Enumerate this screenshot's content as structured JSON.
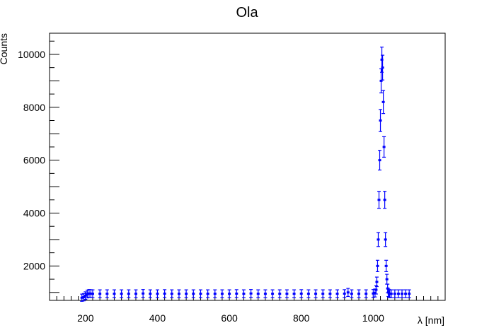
{
  "chart_data": {
    "type": "scatter",
    "title": "Ola",
    "xlabel": "λ [nm]",
    "ylabel": "Counts",
    "xlim": [
      100,
      1200
    ],
    "ylim": [
      700,
      10800
    ],
    "x_ticks": [
      200,
      400,
      600,
      800,
      1000
    ],
    "x_tick_labels": [
      "200",
      "400",
      "600",
      "800",
      "1000"
    ],
    "y_ticks": [
      2000,
      4000,
      6000,
      8000,
      10000
    ],
    "y_tick_labels": [
      "2000",
      "4000",
      "6000",
      "8000",
      "10000"
    ],
    "grid": false,
    "marker_color": "#0000ff",
    "series": [
      {
        "x": [
          190,
          195,
          200,
          205,
          210,
          215,
          220,
          240,
          260,
          280,
          300,
          320,
          340,
          360,
          380,
          400,
          420,
          440,
          460,
          480,
          500,
          520,
          540,
          560,
          580,
          600,
          620,
          640,
          660,
          680,
          700,
          720,
          740,
          760,
          780,
          800,
          820,
          840,
          860,
          880,
          900,
          920,
          930,
          940,
          960,
          980,
          1000,
          1005,
          1008,
          1010,
          1012,
          1014,
          1016,
          1018,
          1020,
          1022,
          1024,
          1026,
          1028,
          1030,
          1032,
          1034,
          1036,
          1038,
          1040,
          1042,
          1044,
          1046,
          1050,
          1060,
          1070,
          1080,
          1090,
          1100
        ],
        "y": [
          800,
          820,
          880,
          940,
          960,
          955,
          950,
          950,
          950,
          950,
          950,
          950,
          950,
          960,
          950,
          950,
          955,
          950,
          950,
          950,
          950,
          950,
          950,
          950,
          950,
          950,
          955,
          950,
          960,
          950,
          950,
          950,
          950,
          950,
          950,
          955,
          950,
          950,
          950,
          950,
          950,
          955,
          1000,
          950,
          950,
          950,
          960,
          980,
          1100,
          1400,
          2000,
          3000,
          4500,
          6000,
          7500,
          9000,
          9800,
          9500,
          8200,
          6500,
          4500,
          3000,
          2000,
          1500,
          1150,
          1000,
          960,
          950,
          950,
          950,
          950,
          950,
          950,
          950
        ]
      }
    ]
  }
}
